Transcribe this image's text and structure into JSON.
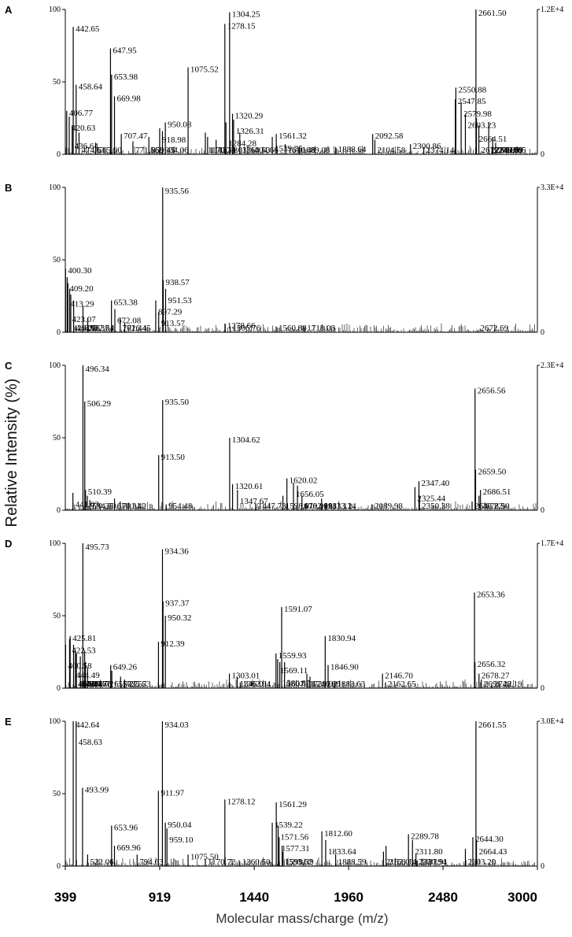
{
  "chart_data": {
    "type": "line",
    "subtype": "mass-spectrum stacked panels",
    "ylabel": "Relative Intensity (%)",
    "xlabel": "Molecular mass/charge (m/z)",
    "xlim": [
      399,
      3000
    ],
    "x_ticks": [
      "399",
      "919",
      "1440",
      "1960",
      "2480",
      "3000"
    ],
    "x_tick_values": [
      399,
      919,
      1440,
      1960,
      2480,
      3000
    ],
    "panels": [
      {
        "id": "A",
        "ylim": [
          0,
          100
        ],
        "y_ticks": [
          "0",
          "50",
          "100"
        ],
        "right_max": "1.2E+4",
        "right_min": "0",
        "peaks": [
          {
            "mz": 442.65,
            "label": "442.65",
            "h": 88
          },
          {
            "mz": 647.95,
            "label": "647.95",
            "h": 73
          },
          {
            "mz": 653.98,
            "label": "653.98",
            "h": 55
          },
          {
            "mz": 458.64,
            "label": "458.64",
            "h": 48
          },
          {
            "mz": 669.98,
            "label": "669.98",
            "h": 40
          },
          {
            "mz": 406.77,
            "label": "406.77",
            "h": 30
          },
          {
            "mz": 420.63,
            "label": "420.63",
            "h": 26
          },
          {
            "mz": 436.64,
            "label": "436.64",
            "h": 20
          },
          {
            "mz": 474.63,
            "label": "474.63",
            "h": 15
          },
          {
            "mz": 565.9,
            "label": "565.90",
            "h": 8
          },
          {
            "mz": 707.47,
            "label": "707.47",
            "h": 14
          },
          {
            "mz": 771.56,
            "label": "771.56",
            "h": 9
          },
          {
            "mz": 859.45,
            "label": "859.45",
            "h": 12
          },
          {
            "mz": 918.98,
            "label": "918.98",
            "h": 18
          },
          {
            "mz": 934.06,
            "label": "934.06",
            "h": 16
          },
          {
            "mz": 950.08,
            "label": "950.08",
            "h": 22
          },
          {
            "mz": 1075.52,
            "label": "1075.52",
            "h": 60
          },
          {
            "mz": 1278.15,
            "label": "1278.15",
            "h": 90
          },
          {
            "mz": 1304.25,
            "label": "1304.25",
            "h": 98
          },
          {
            "mz": 1170.73,
            "label": "1170.73",
            "h": 15
          },
          {
            "mz": 1182.98,
            "label": "1182.98",
            "h": 12
          },
          {
            "mz": 1284.28,
            "label": "1284.28",
            "h": 22
          },
          {
            "mz": 1230.03,
            "label": "1230.03",
            "h": 10
          },
          {
            "mz": 1320.29,
            "label": "1320.29",
            "h": 28
          },
          {
            "mz": 1326.31,
            "label": "1326.31",
            "h": 24
          },
          {
            "mz": 1360.53,
            "label": "1360.53",
            "h": 15
          },
          {
            "mz": 1404.66,
            "label": "1404.66",
            "h": 6
          },
          {
            "mz": 1561.32,
            "label": "1561.32",
            "h": 14
          },
          {
            "mz": 1539.25,
            "label": "1539.25",
            "h": 12
          },
          {
            "mz": 1610.48,
            "label": "1610.48",
            "h": 7
          },
          {
            "mz": 1689.08,
            "label": "1689.08",
            "h": 5
          },
          {
            "mz": 1888.64,
            "label": "1888.64",
            "h": 5
          },
          {
            "mz": 2092.58,
            "label": "2092.58",
            "h": 14
          },
          {
            "mz": 2104.58,
            "label": "2104.58",
            "h": 10
          },
          {
            "mz": 2300.86,
            "label": "2300.86",
            "h": 7
          },
          {
            "mz": 2374.14,
            "label": "2374.14",
            "h": 5
          },
          {
            "mz": 2547.85,
            "label": "2547.85",
            "h": 38
          },
          {
            "mz": 2550.88,
            "label": "2550.88",
            "h": 46
          },
          {
            "mz": 2579.98,
            "label": "2579.98",
            "h": 36
          },
          {
            "mz": 2603.23,
            "label": "2603.23",
            "h": 28
          },
          {
            "mz": 2661.5,
            "label": "2661.50",
            "h": 100
          },
          {
            "mz": 2664.51,
            "label": "2664.51",
            "h": 25
          },
          {
            "mz": 2677.5813,
            "label": "2677.5813",
            "h": 20
          },
          {
            "mz": 2731.86,
            "label": "2731.86",
            "h": 22
          },
          {
            "mz": 2753.89,
            "label": "2753.89",
            "h": 12
          },
          {
            "mz": 2769.95,
            "label": "2769.95",
            "h": 8
          },
          {
            "mz": 2749.96,
            "label": "2749.96",
            "h": 5
          }
        ]
      },
      {
        "id": "B",
        "ylim": [
          0,
          100
        ],
        "y_ticks": [
          "0",
          "50",
          "100"
        ],
        "right_max": "3.3E+4",
        "right_min": "0",
        "peaks": [
          {
            "mz": 400.3,
            "label": "400.30",
            "h": 44
          },
          {
            "mz": 409.2,
            "label": "409.20",
            "h": 38
          },
          {
            "mz": 413.29,
            "label": "413.29",
            "h": 34
          },
          {
            "mz": 423.07,
            "label": "423.07",
            "h": 30
          },
          {
            "mz": 429.25,
            "label": "429.25",
            "h": 26
          },
          {
            "mz": 445.06,
            "label": "445.06",
            "h": 22
          },
          {
            "mz": 496.37,
            "label": "496.37",
            "h": 18
          },
          {
            "mz": 522.64,
            "label": "522.64",
            "h": 10
          },
          {
            "mz": 653.38,
            "label": "653.38",
            "h": 22
          },
          {
            "mz": 672.08,
            "label": "672.08",
            "h": 16
          },
          {
            "mz": 701.44,
            "label": "701.44",
            "h": 10
          },
          {
            "mz": 726.45,
            "label": "726.45",
            "h": 7
          },
          {
            "mz": 897.29,
            "label": "897.29",
            "h": 22
          },
          {
            "mz": 913.57,
            "label": "913.57",
            "h": 14
          },
          {
            "mz": 935.56,
            "label": "935.56",
            "h": 100
          },
          {
            "mz": 938.57,
            "label": "938.57",
            "h": 36
          },
          {
            "mz": 951.53,
            "label": "951.53",
            "h": 30
          },
          {
            "mz": 1278.66,
            "label": "1278.66",
            "h": 6
          },
          {
            "mz": 1306.76,
            "label": "1306.76",
            "h": 4
          },
          {
            "mz": 1560.88,
            "label": "1560.88",
            "h": 4
          },
          {
            "mz": 1718.08,
            "label": "1718.08",
            "h": 3
          },
          {
            "mz": 2672.69,
            "label": "2672.69",
            "h": 1
          }
        ]
      },
      {
        "id": "C",
        "ylim": [
          0,
          100
        ],
        "y_ticks": [
          "0",
          "50",
          "100"
        ],
        "right_max": "2.3E+4",
        "right_min": "0",
        "peaks": [
          {
            "mz": 496.34,
            "label": "496.34",
            "h": 100
          },
          {
            "mz": 506.29,
            "label": "506.29",
            "h": 75
          },
          {
            "mz": 441.03,
            "label": "441.03",
            "h": 12
          },
          {
            "mz": 510.39,
            "label": "510.39",
            "h": 14
          },
          {
            "mz": 520.35,
            "label": "520.35",
            "h": 10
          },
          {
            "mz": 534.3,
            "label": "534.30",
            "h": 7
          },
          {
            "mz": 670.31,
            "label": "670.31",
            "h": 8
          },
          {
            "mz": 701.42,
            "label": "701.42",
            "h": 6
          },
          {
            "mz": 913.5,
            "label": "913.50",
            "h": 38
          },
          {
            "mz": 935.5,
            "label": "935.50",
            "h": 76
          },
          {
            "mz": 954.48,
            "label": "954.48",
            "h": 4
          },
          {
            "mz": 1304.62,
            "label": "1304.62",
            "h": 50
          },
          {
            "mz": 1320.61,
            "label": "1320.61",
            "h": 18
          },
          {
            "mz": 1347.67,
            "label": "1347.67",
            "h": 14
          },
          {
            "mz": 1447.73,
            "label": "1447.73",
            "h": 5
          },
          {
            "mz": 1598.01,
            "label": "1598.01",
            "h": 10
          },
          {
            "mz": 1620.02,
            "label": "1620.02",
            "h": 22
          },
          {
            "mz": 1656.05,
            "label": "1656.05",
            "h": 19
          },
          {
            "mz": 1678.06,
            "label": "1678.06",
            "h": 17
          },
          {
            "mz": 1702.99,
            "label": "1702.99",
            "h": 10
          },
          {
            "mz": 1811.12,
            "label": "1811.12",
            "h": 8
          },
          {
            "mz": 1833.14,
            "label": "1833.14",
            "h": 4
          },
          {
            "mz": 2089.98,
            "label": "2089.98",
            "h": 4
          },
          {
            "mz": 2325.44,
            "label": "2325.44",
            "h": 16
          },
          {
            "mz": 2347.4,
            "label": "2347.40",
            "h": 20
          },
          {
            "mz": 2350.38,
            "label": "2350.38",
            "h": 10
          },
          {
            "mz": 2640.22,
            "label": "2640.22",
            "h": 6
          },
          {
            "mz": 2656.56,
            "label": "2656.56",
            "h": 84
          },
          {
            "mz": 2659.5,
            "label": "2659.50",
            "h": 28
          },
          {
            "mz": 2686.51,
            "label": "2686.51",
            "h": 14
          },
          {
            "mz": 2678.5,
            "label": "2678.50",
            "h": 10
          }
        ]
      },
      {
        "id": "D",
        "ylim": [
          0,
          100
        ],
        "y_ticks": [
          "0",
          "50",
          "100"
        ],
        "right_max": "1.7E+4",
        "right_min": "0",
        "peaks": [
          {
            "mz": 495.73,
            "label": "495.73",
            "h": 100
          },
          {
            "mz": 400.58,
            "label": "400.58",
            "h": 30
          },
          {
            "mz": 422.53,
            "label": "422.53",
            "h": 34
          },
          {
            "mz": 425.81,
            "label": "425.81",
            "h": 36
          },
          {
            "mz": 444.49,
            "label": "444.49",
            "h": 30
          },
          {
            "mz": 454.44,
            "label": "454.44",
            "h": 26
          },
          {
            "mz": 460.44,
            "label": "460.44",
            "h": 24
          },
          {
            "mz": 481.77,
            "label": "481.77",
            "h": 22
          },
          {
            "mz": 505.67,
            "label": "505.67",
            "h": 26
          },
          {
            "mz": 509.76,
            "label": "509.76",
            "h": 18
          },
          {
            "mz": 521.72,
            "label": "521.72",
            "h": 14
          },
          {
            "mz": 649.26,
            "label": "649.26",
            "h": 16
          },
          {
            "mz": 655.27,
            "label": "655.27",
            "h": 12
          },
          {
            "mz": 703.57,
            "label": "703.57",
            "h": 8
          },
          {
            "mz": 725.53,
            "label": "725.53",
            "h": 6
          },
          {
            "mz": 912.39,
            "label": "912.39",
            "h": 32
          },
          {
            "mz": 934.36,
            "label": "934.36",
            "h": 96
          },
          {
            "mz": 937.37,
            "label": "937.37",
            "h": 60
          },
          {
            "mz": 950.32,
            "label": "950.32",
            "h": 50
          },
          {
            "mz": 1303.01,
            "label": "1303.01",
            "h": 10
          },
          {
            "mz": 1346.01,
            "label": "1346.01",
            "h": 8
          },
          {
            "mz": 1362.94,
            "label": "1362.94",
            "h": 4
          },
          {
            "mz": 1559.93,
            "label": "1559.93",
            "h": 24
          },
          {
            "mz": 1569.11,
            "label": "1569.11",
            "h": 20
          },
          {
            "mz": 1580.87,
            "label": "1580.87",
            "h": 18
          },
          {
            "mz": 1591.07,
            "label": "1591.07",
            "h": 56
          },
          {
            "mz": 1607.01,
            "label": "1607.01",
            "h": 18
          },
          {
            "mz": 1729.92,
            "label": "1729.92",
            "h": 10
          },
          {
            "mz": 1746.86,
            "label": "1746.86",
            "h": 8
          },
          {
            "mz": 1830.94,
            "label": "1830.94",
            "h": 36
          },
          {
            "mz": 1846.9,
            "label": "1846.90",
            "h": 16
          },
          {
            "mz": 1883.63,
            "label": "1883.63",
            "h": 4
          },
          {
            "mz": 2146.7,
            "label": "2146.70",
            "h": 10
          },
          {
            "mz": 2162.65,
            "label": "2162.65",
            "h": 4
          },
          {
            "mz": 2653.36,
            "label": "2653.36",
            "h": 66
          },
          {
            "mz": 2656.32,
            "label": "2656.32",
            "h": 18
          },
          {
            "mz": 2678.27,
            "label": "2678.27",
            "h": 10
          },
          {
            "mz": 2691.22,
            "label": "2691.22",
            "h": 6
          },
          {
            "mz": 2748.19,
            "label": "2748.19",
            "h": 3
          }
        ]
      },
      {
        "id": "E",
        "ylim": [
          0,
          100
        ],
        "y_ticks": [
          "0",
          "50",
          "100"
        ],
        "right_max": "3.0E+4",
        "right_min": "0",
        "peaks": [
          {
            "mz": 442.64,
            "label": "442.64",
            "h": 100
          },
          {
            "mz": 458.63,
            "label": "458.63",
            "h": 100
          },
          {
            "mz": 493.99,
            "label": "493.99",
            "h": 54
          },
          {
            "mz": 522.06,
            "label": "522.06",
            "h": 8
          },
          {
            "mz": 653.96,
            "label": "653.96",
            "h": 28
          },
          {
            "mz": 669.96,
            "label": "669.96",
            "h": 14
          },
          {
            "mz": 794.63,
            "label": "794.63",
            "h": 8
          },
          {
            "mz": 911.97,
            "label": "911.97",
            "h": 52
          },
          {
            "mz": 934.03,
            "label": "934.03",
            "h": 100
          },
          {
            "mz": 950.04,
            "label": "950.04",
            "h": 30
          },
          {
            "mz": 959.1,
            "label": "959.10",
            "h": 26
          },
          {
            "mz": 1075.5,
            "label": "1075.50",
            "h": 8
          },
          {
            "mz": 1170.72,
            "label": "1170.72",
            "h": 5
          },
          {
            "mz": 1278.12,
            "label": "1278.12",
            "h": 46
          },
          {
            "mz": 1360.5,
            "label": "1360.50",
            "h": 3
          },
          {
            "mz": 1539.22,
            "label": "1539.22",
            "h": 30
          },
          {
            "mz": 1561.29,
            "label": "1561.29",
            "h": 44
          },
          {
            "mz": 1571.56,
            "label": "1571.56",
            "h": 28
          },
          {
            "mz": 1577.31,
            "label": "1577.31",
            "h": 20
          },
          {
            "mz": 1593.62,
            "label": "1593.62",
            "h": 14
          },
          {
            "mz": 1599.39,
            "label": "1599.39",
            "h": 10
          },
          {
            "mz": 1812.6,
            "label": "1812.60",
            "h": 24
          },
          {
            "mz": 1833.64,
            "label": "1833.64",
            "h": 18
          },
          {
            "mz": 1888.59,
            "label": "1888.59",
            "h": 8
          },
          {
            "mz": 2152.03,
            "label": "2152.03",
            "h": 10
          },
          {
            "mz": 2166.14,
            "label": "2166.14",
            "h": 14
          },
          {
            "mz": 2289.78,
            "label": "2289.78",
            "h": 22
          },
          {
            "mz": 2311.8,
            "label": "2311.80",
            "h": 18
          },
          {
            "mz": 2330.94,
            "label": "2330.94",
            "h": 8
          },
          {
            "mz": 2337.91,
            "label": "2337.91",
            "h": 4
          },
          {
            "mz": 2603.2,
            "label": "2603.20",
            "h": 12
          },
          {
            "mz": 2644.3,
            "label": "2644.30",
            "h": 20
          },
          {
            "mz": 2661.55,
            "label": "2661.55",
            "h": 100
          },
          {
            "mz": 2664.43,
            "label": "2664.43",
            "h": 18
          }
        ]
      }
    ]
  }
}
